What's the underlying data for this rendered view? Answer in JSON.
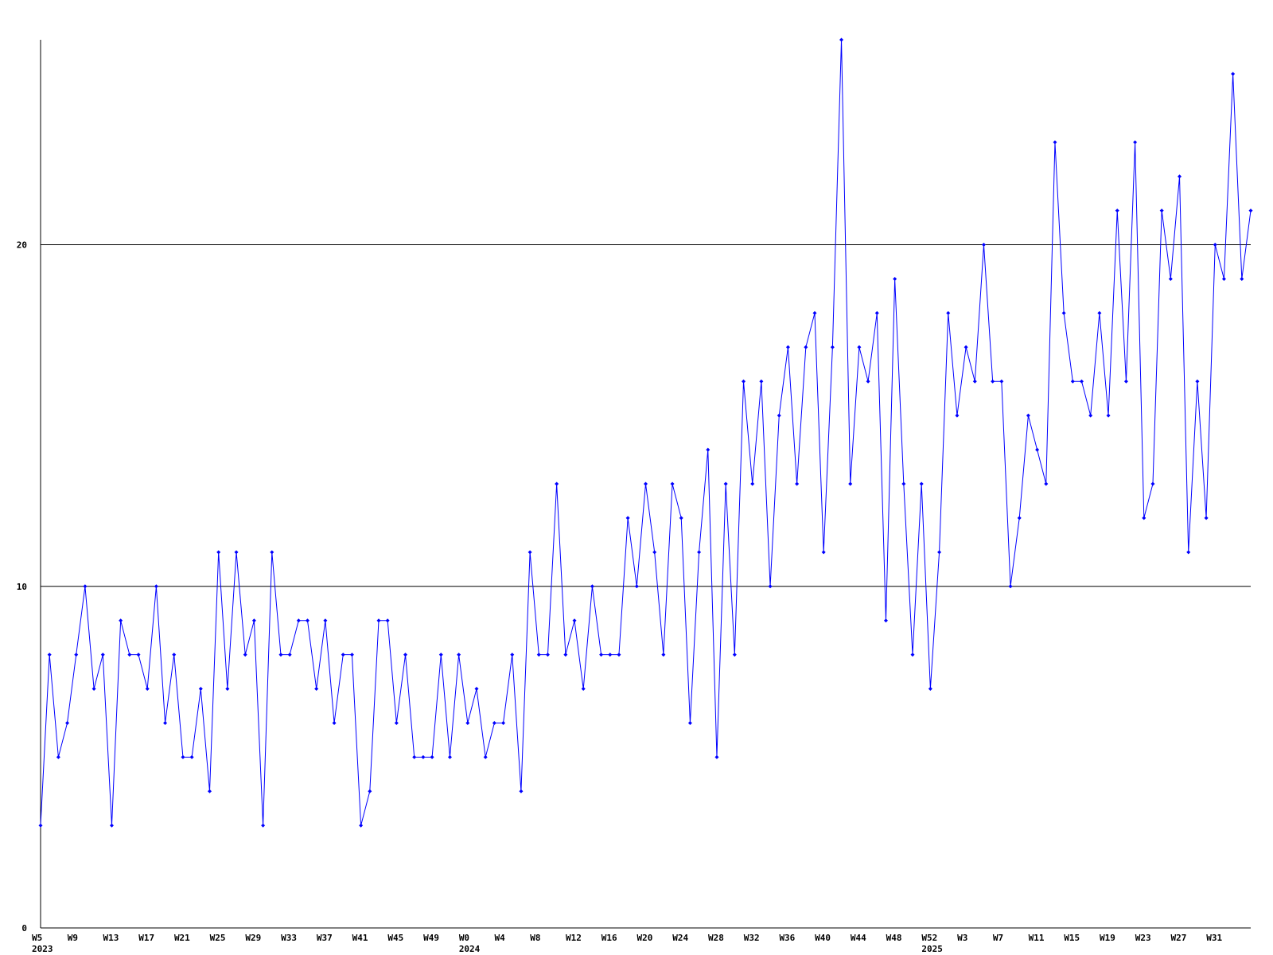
{
  "chart_data": {
    "type": "line",
    "categories": [
      "W5",
      null,
      null,
      null,
      "W9",
      null,
      null,
      null,
      "W13",
      null,
      null,
      null,
      "W17",
      null,
      null,
      null,
      "W21",
      null,
      null,
      null,
      "W25",
      null,
      null,
      null,
      "W29",
      null,
      null,
      null,
      "W33",
      null,
      null,
      null,
      "W37",
      null,
      null,
      null,
      "W41",
      null,
      null,
      null,
      "W45",
      null,
      null,
      null,
      "W49",
      null,
      null,
      null,
      "W0",
      null,
      null,
      null,
      "W4",
      null,
      null,
      null,
      "W8",
      null,
      null,
      null,
      "W12",
      null,
      null,
      null,
      "W16",
      null,
      null,
      null,
      "W20",
      null,
      null,
      null,
      "W24",
      null,
      null,
      null,
      "W28",
      null,
      null,
      null,
      "W32",
      null,
      null,
      null,
      "W36",
      null,
      null,
      null,
      "W40",
      null,
      null,
      null,
      "W44",
      null,
      null,
      null,
      "W48",
      null,
      null,
      null,
      "W52",
      null,
      null,
      null,
      "W3",
      null,
      null,
      null,
      "W7",
      null,
      null,
      null,
      "W11",
      null,
      null,
      null,
      "W15",
      null,
      null,
      null,
      "W19",
      null,
      null,
      null,
      "W23",
      null,
      null,
      null,
      "W27",
      null,
      null,
      null,
      "W31",
      null,
      null,
      null,
      null
    ],
    "years": [
      "2023",
      null,
      null,
      null,
      null,
      null,
      null,
      null,
      null,
      null,
      null,
      null,
      null,
      null,
      null,
      null,
      null,
      null,
      null,
      null,
      null,
      null,
      null,
      null,
      null,
      null,
      null,
      null,
      null,
      null,
      null,
      null,
      null,
      null,
      null,
      null,
      null,
      null,
      null,
      null,
      null,
      null,
      null,
      null,
      null,
      null,
      null,
      null,
      "2024",
      null,
      null,
      null,
      null,
      null,
      null,
      null,
      null,
      null,
      null,
      null,
      null,
      null,
      null,
      null,
      null,
      null,
      null,
      null,
      null,
      null,
      null,
      null,
      null,
      null,
      null,
      null,
      null,
      null,
      null,
      null,
      null,
      null,
      null,
      null,
      null,
      null,
      null,
      null,
      null,
      null,
      null,
      null,
      null,
      null,
      null,
      null,
      null,
      null,
      null,
      null,
      "2025",
      null,
      null,
      null,
      null,
      null,
      null,
      null,
      null,
      null,
      null,
      null,
      null,
      null,
      null,
      null,
      null,
      null,
      null,
      null,
      null,
      null,
      null,
      null,
      null,
      null,
      null,
      null,
      null,
      null,
      null,
      null,
      null,
      null,
      null
    ],
    "series": [
      {
        "color": "#0000ff",
        "values": [
          3,
          8,
          5,
          6,
          8,
          10,
          7,
          8,
          3,
          9,
          8,
          8,
          7,
          10,
          6,
          8,
          5,
          5,
          7,
          4,
          11,
          7,
          11,
          8,
          9,
          3,
          11,
          8,
          8,
          9,
          9,
          7,
          9,
          6,
          8,
          8,
          3,
          4,
          9,
          9,
          6,
          8,
          5,
          5,
          5,
          8,
          5,
          8,
          6,
          7,
          5,
          6,
          6,
          8,
          4,
          11,
          8,
          8,
          13,
          8,
          9,
          7,
          10,
          8,
          8,
          8,
          12,
          10,
          13,
          11,
          8,
          13,
          12,
          6,
          11,
          14,
          5,
          13,
          8,
          16,
          13,
          16,
          10,
          15,
          17,
          13,
          17,
          18,
          11,
          17,
          26,
          13,
          17,
          16,
          18,
          9,
          19,
          13,
          8,
          13,
          7,
          11,
          18,
          15,
          17,
          16,
          20,
          16,
          16,
          10,
          12,
          15,
          14,
          13,
          23,
          18,
          16,
          16,
          15,
          18,
          15,
          21,
          16,
          23,
          12,
          13,
          21,
          19,
          22,
          11,
          16,
          12,
          20,
          19,
          25,
          19,
          21
        ]
      }
    ],
    "ylim": [
      0,
      26
    ],
    "yticks": [
      0,
      10,
      20
    ],
    "grid": true
  }
}
